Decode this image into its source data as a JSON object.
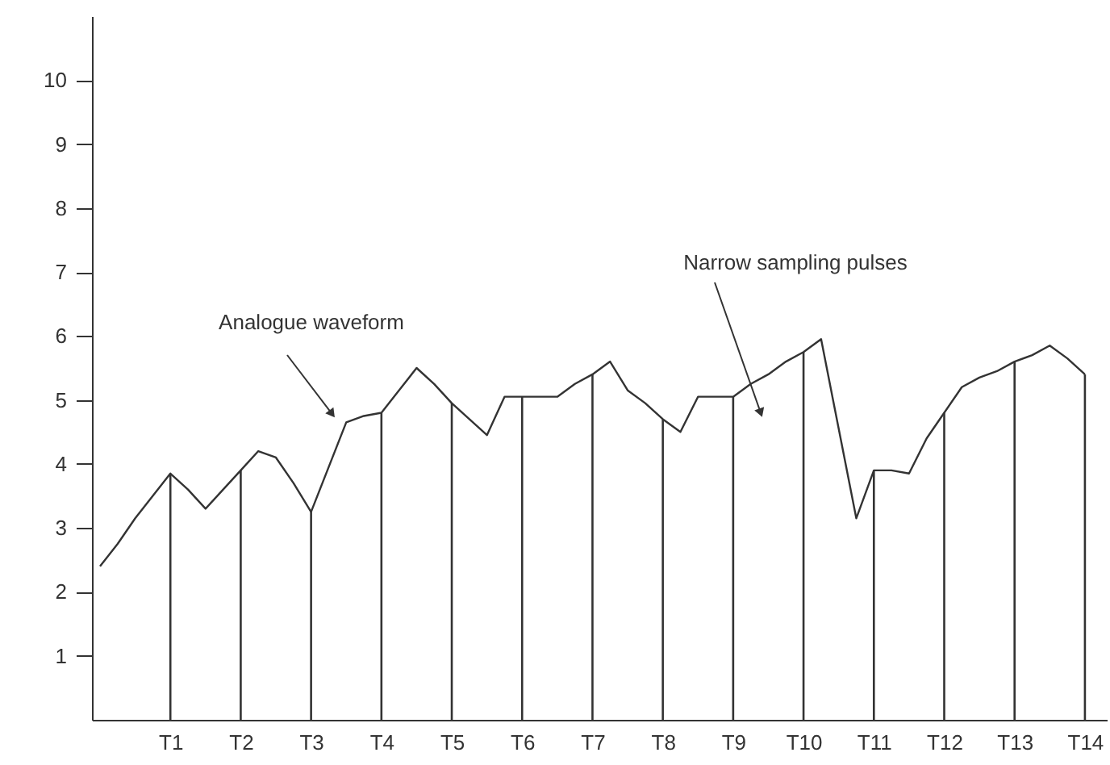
{
  "chart_data": {
    "type": "line",
    "ylim": [
      0,
      11
    ],
    "yticks": [
      1,
      2,
      3,
      4,
      5,
      6,
      7,
      8,
      9,
      10
    ],
    "categories": [
      null,
      null,
      null,
      null,
      "T1",
      null,
      null,
      null,
      "T2",
      null,
      null,
      null,
      "T3",
      null,
      null,
      null,
      "T4",
      null,
      null,
      null,
      "T5",
      null,
      null,
      null,
      "T6",
      null,
      null,
      null,
      "T7",
      null,
      null,
      null,
      "T8",
      null,
      null,
      null,
      "T9",
      null,
      null,
      null,
      "T10",
      null,
      null,
      null,
      "T11",
      null,
      null,
      null,
      "T12",
      null,
      null,
      null,
      "T13",
      null,
      null,
      null,
      "T14"
    ],
    "series": [
      {
        "color": "#333333",
        "values": [
          2.4,
          2.75,
          3.15,
          3.5,
          3.85,
          3.6,
          3.3,
          3.6,
          3.9,
          4.2,
          4.1,
          3.7,
          3.25,
          3.95,
          4.65,
          4.75,
          4.8,
          5.15,
          5.5,
          5.25,
          4.95,
          4.7,
          4.45,
          5.05,
          5.05,
          5.05,
          5.05,
          5.25,
          5.4,
          5.6,
          5.15,
          4.95,
          4.7,
          4.5,
          5.05,
          5.05,
          5.05,
          5.25,
          5.4,
          5.6,
          5.75,
          5.95,
          4.55,
          3.15,
          3.9,
          3.9,
          3.85,
          4.4,
          4.8,
          5.2,
          5.35,
          5.45,
          5.6,
          5.7,
          5.85,
          5.65,
          5.4
        ]
      },
      {
        "type": "bar",
        "color": "#333333",
        "values": [
          null,
          null,
          null,
          null,
          3.85,
          null,
          null,
          null,
          3.9,
          null,
          null,
          null,
          3.25,
          null,
          null,
          null,
          4.8,
          null,
          null,
          null,
          4.95,
          null,
          null,
          null,
          5.05,
          null,
          null,
          null,
          5.4,
          null,
          null,
          null,
          4.7,
          null,
          null,
          null,
          5.05,
          null,
          null,
          null,
          5.75,
          null,
          null,
          null,
          3.9,
          null,
          null,
          null,
          4.8,
          null,
          null,
          null,
          5.6,
          null,
          null,
          null,
          5.4
        ]
      }
    ],
    "annotations": [
      "Analogue waveform",
      "Narrow sampling pulses"
    ]
  }
}
